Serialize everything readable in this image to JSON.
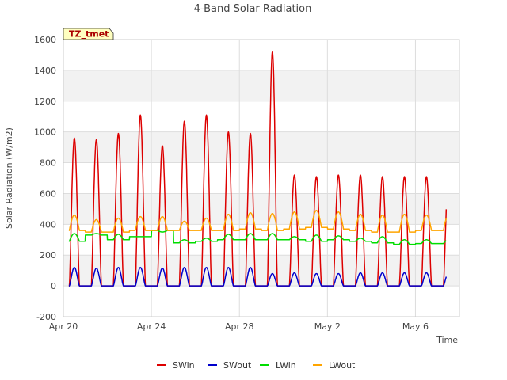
{
  "chart_data": {
    "type": "line",
    "title": "4-Band Solar Radiation",
    "xlabel": "Time",
    "ylabel": "Solar Radiation (W/m2)",
    "site_tag": "TZ_tmet",
    "x_range_days": [
      0,
      18
    ],
    "ylim": [
      -200,
      1600
    ],
    "yticks": [
      -200,
      0,
      200,
      400,
      600,
      800,
      1000,
      1200,
      1400,
      1600
    ],
    "xticks": [
      {
        "day": 0,
        "label": "Apr 20"
      },
      {
        "day": 4,
        "label": "Apr 24"
      },
      {
        "day": 8,
        "label": "Apr 28"
      },
      {
        "day": 12,
        "label": "May 2"
      },
      {
        "day": 16,
        "label": "May 6"
      }
    ],
    "grid": true,
    "legend_position": "bottom",
    "series": [
      {
        "name": "SWin",
        "color": "#dd0000",
        "daily_peak": [
          960,
          950,
          990,
          1110,
          910,
          1070,
          1110,
          1000,
          990,
          1520,
          720,
          710,
          720,
          720,
          710,
          710,
          710
        ],
        "night_value": 0
      },
      {
        "name": "SWout",
        "color": "#0000cc",
        "daily_peak": [
          120,
          115,
          120,
          120,
          115,
          120,
          120,
          120,
          120,
          80,
          85,
          80,
          80,
          85,
          85,
          85,
          85
        ],
        "night_value": 0
      },
      {
        "name": "LWin",
        "color": "#00dd00",
        "daily_base": [
          290,
          330,
          300,
          320,
          360,
          280,
          290,
          300,
          300,
          300,
          300,
          290,
          300,
          290,
          280,
          270,
          275
        ],
        "daily_peak": [
          340,
          340,
          335,
          320,
          350,
          300,
          310,
          335,
          340,
          340,
          320,
          330,
          325,
          310,
          320,
          300,
          300
        ]
      },
      {
        "name": "LWout",
        "color": "#ffa500",
        "daily_base": [
          360,
          350,
          350,
          360,
          360,
          360,
          360,
          360,
          370,
          360,
          370,
          380,
          370,
          360,
          350,
          350,
          360
        ],
        "daily_peak": [
          460,
          430,
          440,
          450,
          450,
          420,
          440,
          465,
          475,
          470,
          480,
          490,
          480,
          465,
          460,
          465,
          460
        ]
      }
    ]
  }
}
